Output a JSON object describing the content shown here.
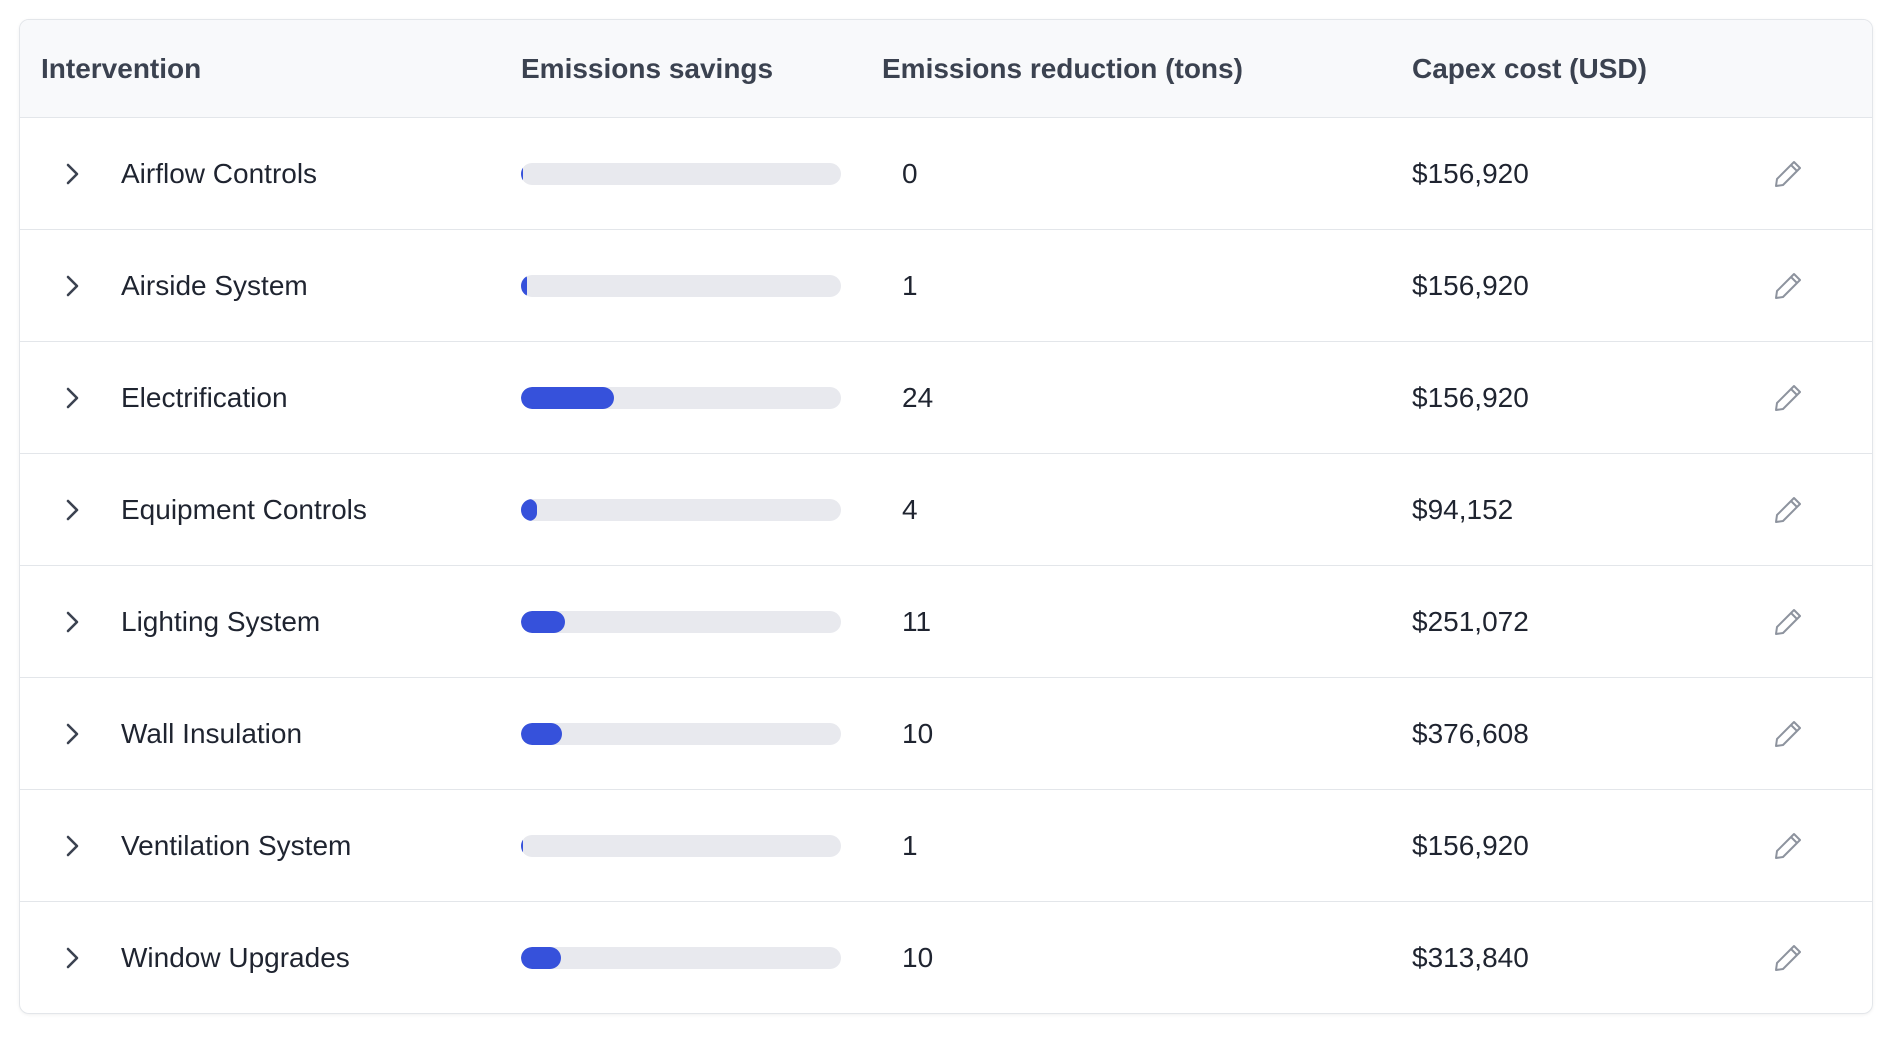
{
  "table": {
    "columns": [
      "Intervention",
      "Emissions savings",
      "Emissions reduction (tons)",
      "Capex cost (USD)"
    ],
    "rows": [
      {
        "name": "Airflow Controls",
        "savings": 0.5,
        "reduction": 0,
        "capex": "$156,920"
      },
      {
        "name": "Airside System",
        "savings": 2,
        "reduction": 1,
        "capex": "$156,920"
      },
      {
        "name": "Electrification",
        "savings": 29,
        "reduction": 24,
        "capex": "$156,920"
      },
      {
        "name": "Equipment Controls",
        "savings": 5,
        "reduction": 4,
        "capex": "$94,152"
      },
      {
        "name": "Lighting System",
        "savings": 13.6,
        "reduction": 11,
        "capex": "$251,072"
      },
      {
        "name": "Wall Insulation",
        "savings": 12.8,
        "reduction": 10,
        "capex": "$376,608"
      },
      {
        "name": "Ventilation System",
        "savings": 0.5,
        "reduction": 1,
        "capex": "$156,920"
      },
      {
        "name": "Window Upgrades",
        "savings": 12.5,
        "reduction": 10,
        "capex": "$313,840"
      }
    ]
  }
}
